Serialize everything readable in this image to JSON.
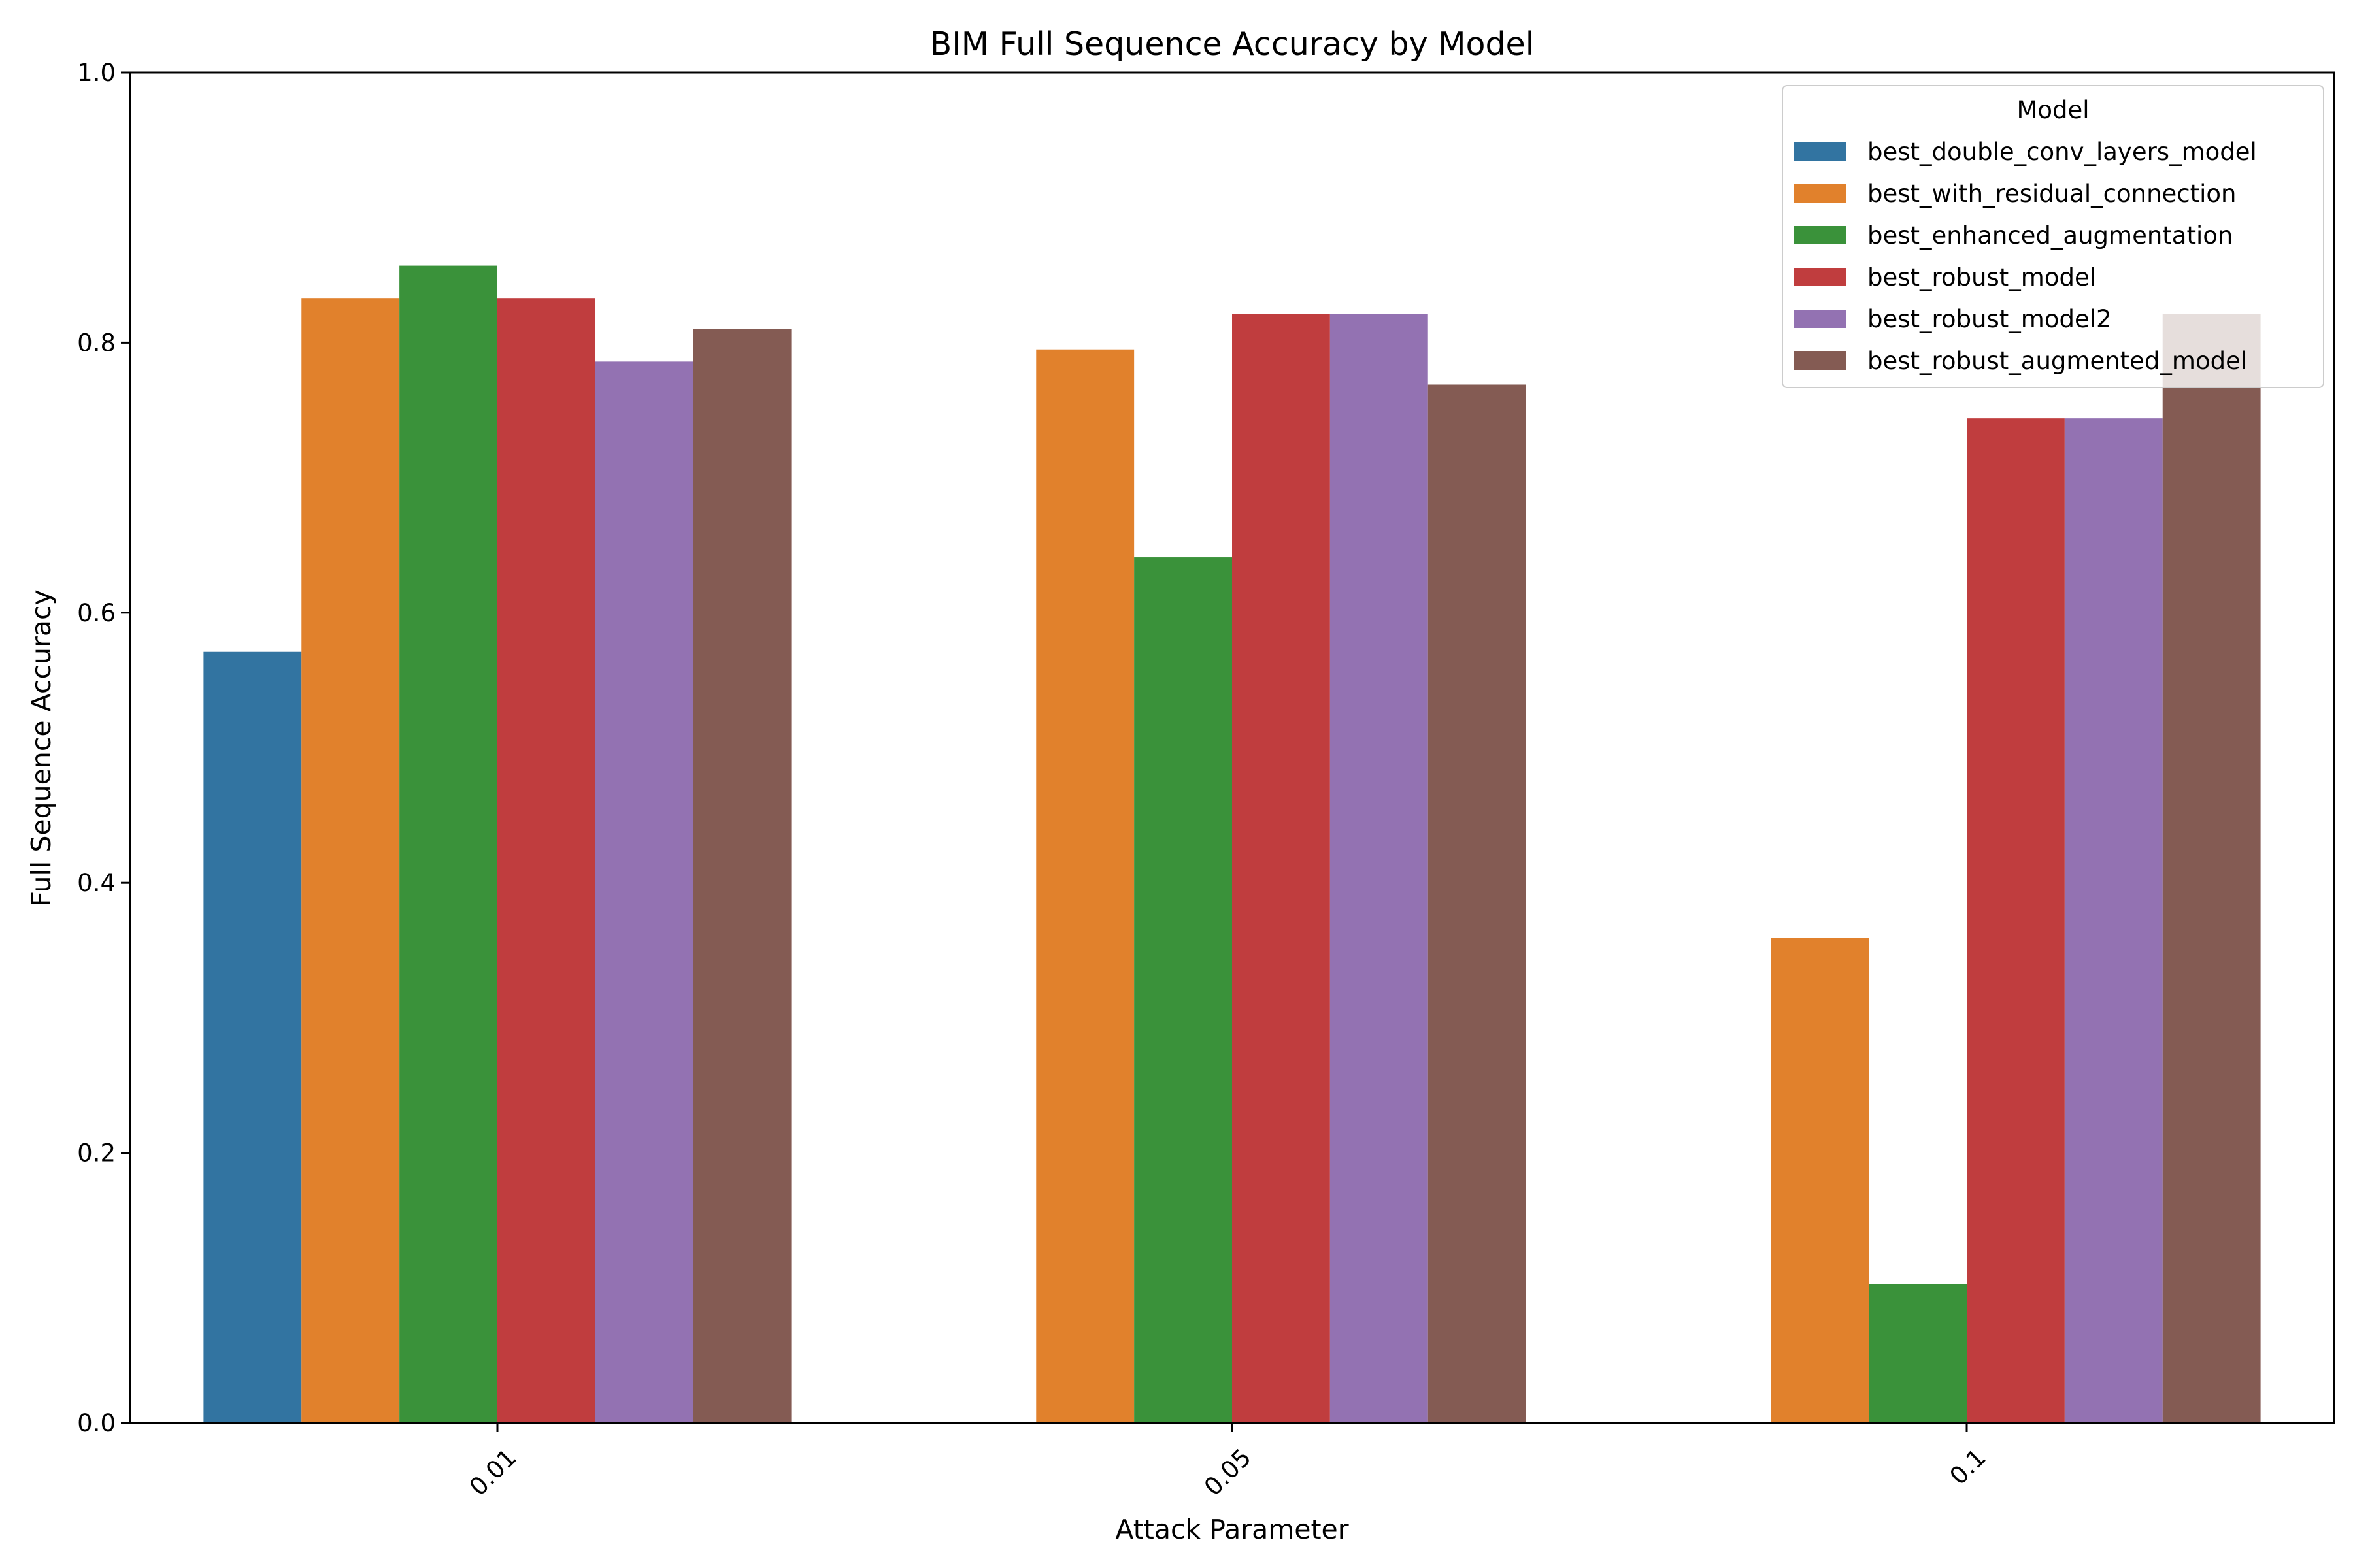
{
  "chart_data": {
    "type": "bar",
    "title": "BIM Full Sequence Accuracy by Model",
    "xlabel": "Attack Parameter",
    "ylabel": "Full Sequence Accuracy",
    "ylim": [
      0,
      1.0
    ],
    "yticks": [
      "0.0",
      "0.2",
      "0.4",
      "0.6",
      "0.8",
      "1.0"
    ],
    "categories": [
      "0.01",
      "0.05",
      "0.1"
    ],
    "grid": false,
    "legend": {
      "title": "Model",
      "placement": "top-right"
    },
    "series": [
      {
        "name": "best_double_conv_layers_model",
        "color": "#3274a1",
        "values": [
          0.571,
          null,
          null
        ]
      },
      {
        "name": "best_with_residual_connection",
        "color": "#e1812c",
        "values": [
          0.833,
          0.795,
          0.359
        ]
      },
      {
        "name": "best_enhanced_augmentation",
        "color": "#3a923a",
        "values": [
          0.857,
          0.641,
          0.103
        ]
      },
      {
        "name": "best_robust_model",
        "color": "#c03d3e",
        "values": [
          0.833,
          0.821,
          0.744
        ]
      },
      {
        "name": "best_robust_model2",
        "color": "#9372b2",
        "values": [
          0.786,
          0.821,
          0.744
        ]
      },
      {
        "name": "best_robust_augmented_model",
        "color": "#845b53",
        "values": [
          0.81,
          0.769,
          0.821
        ]
      }
    ]
  }
}
